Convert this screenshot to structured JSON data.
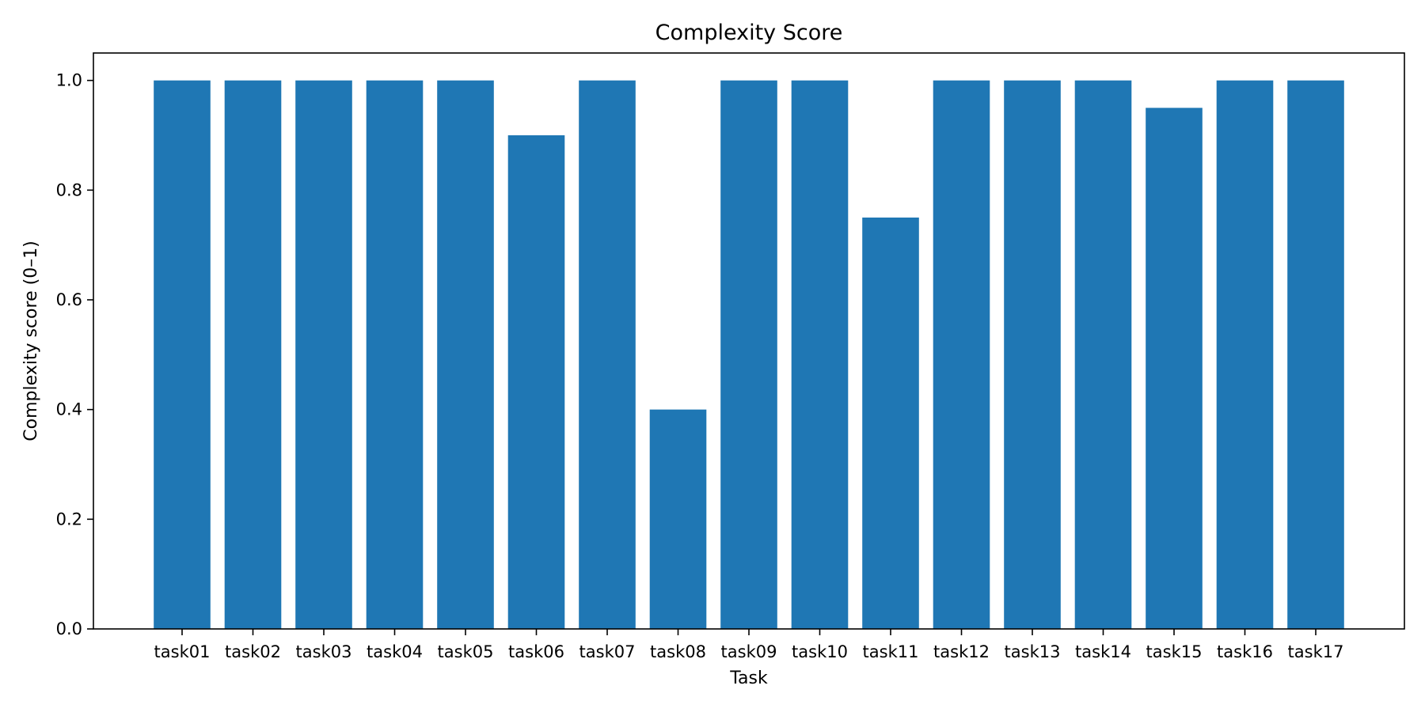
{
  "chart_data": {
    "type": "bar",
    "title": "Complexity Score",
    "xlabel": "Task",
    "ylabel": "Complexity score (0–1)",
    "categories": [
      "task01",
      "task02",
      "task03",
      "task04",
      "task05",
      "task06",
      "task07",
      "task08",
      "task09",
      "task10",
      "task11",
      "task12",
      "task13",
      "task14",
      "task15",
      "task16",
      "task17"
    ],
    "values": [
      1.0,
      1.0,
      1.0,
      1.0,
      1.0,
      0.9,
      1.0,
      0.4,
      1.0,
      1.0,
      0.75,
      1.0,
      1.0,
      1.0,
      0.95,
      1.0,
      1.0
    ],
    "ylim": [
      0,
      1.05
    ],
    "yticks": [
      0.0,
      0.2,
      0.4,
      0.6,
      0.8,
      1.0
    ],
    "ytick_labels": [
      "0.0",
      "0.2",
      "0.4",
      "0.6",
      "0.8",
      "1.0"
    ],
    "grid": false,
    "legend": "none",
    "bar_color": "#1f77b4"
  }
}
